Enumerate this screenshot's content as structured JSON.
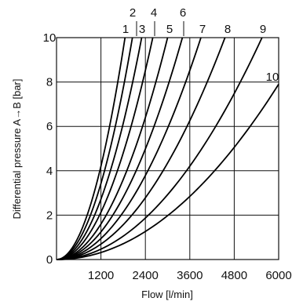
{
  "chart_data": {
    "type": "line",
    "title": "",
    "xlabel": "Flow [l/min]",
    "ylabel": "Differential pressure A→B [bar]",
    "xlim": [
      0,
      6000
    ],
    "ylim": [
      0,
      10
    ],
    "x_ticks": [
      0,
      1200,
      2400,
      3600,
      4800,
      6000
    ],
    "y_ticks": [
      2,
      4,
      6,
      8,
      10
    ],
    "y_tick_labels": [
      {
        "value": 10,
        "text": "10"
      },
      {
        "value": 8,
        "text": "8"
      },
      {
        "value": 6,
        "text": "6"
      },
      {
        "value": 4,
        "text": "4"
      },
      {
        "value": 2,
        "text": "2"
      },
      {
        "value": 0,
        "text": "0"
      }
    ],
    "x_tick_labels": [
      {
        "value": 1200,
        "text": "1200"
      },
      {
        "value": 2400,
        "text": "2400"
      },
      {
        "value": 3600,
        "text": "3600"
      },
      {
        "value": 4800,
        "text": "4800"
      },
      {
        "value": 6000,
        "text": "6000"
      }
    ],
    "grid": true,
    "series": [
      {
        "name": "1",
        "x_at_10bar": 1850
      },
      {
        "name": "2",
        "x_at_10bar": 2050
      },
      {
        "name": "3",
        "x_at_10bar": 2300
      },
      {
        "name": "4",
        "x_at_10bar": 2600
      },
      {
        "name": "5",
        "x_at_10bar": 3000
      },
      {
        "name": "6",
        "x_at_10bar": 3400
      },
      {
        "name": "7",
        "x_at_10bar": 3900
      },
      {
        "name": "8",
        "x_at_10bar": 4550
      },
      {
        "name": "9",
        "x_at_10bar": 5550
      },
      {
        "name": "10",
        "x_at_10bar": 6750
      }
    ]
  }
}
